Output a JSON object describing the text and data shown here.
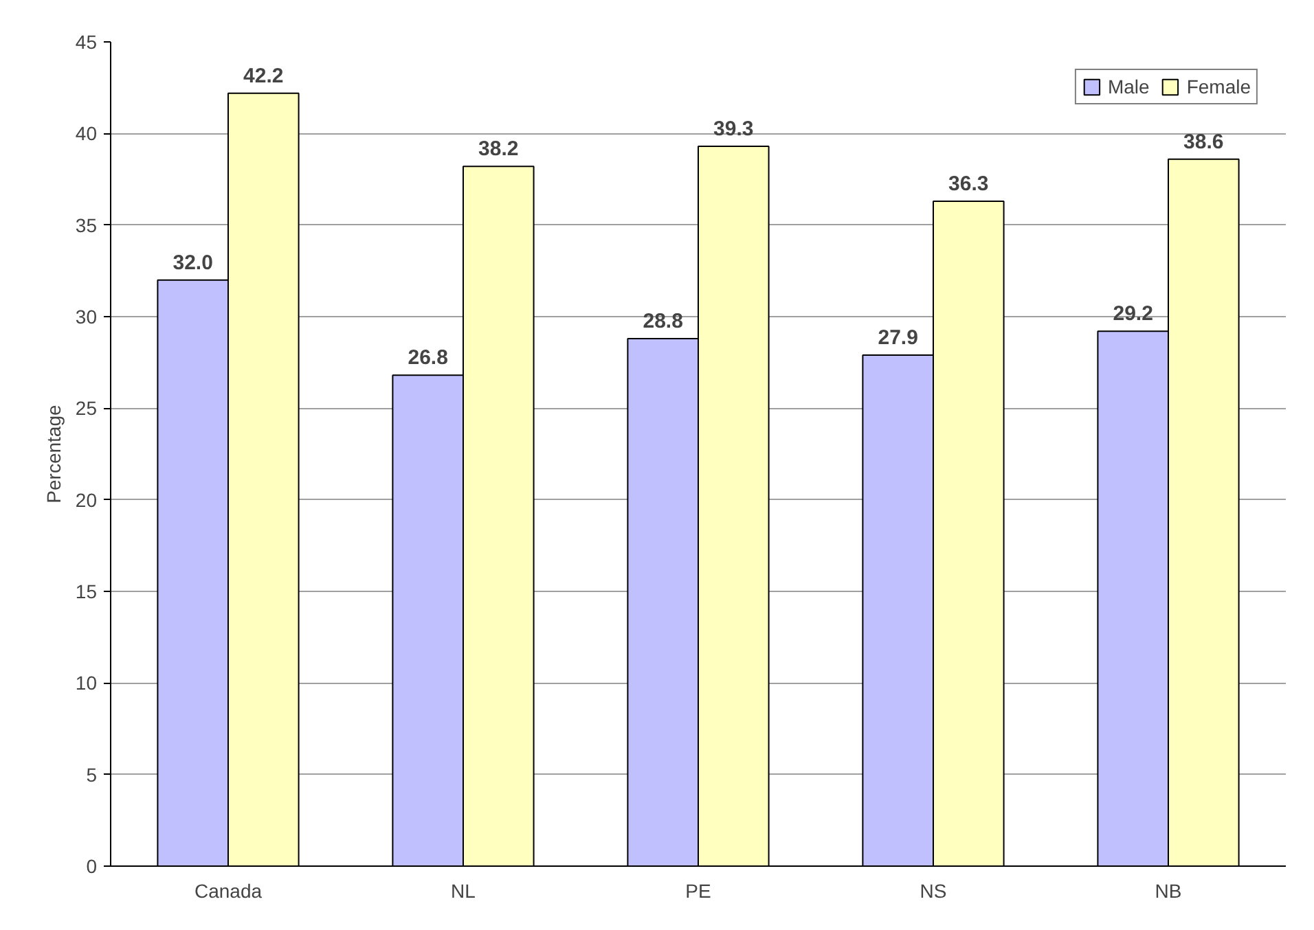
{
  "chart_data": {
    "type": "bar",
    "ylabel": "Percentage",
    "categories": [
      "Canada",
      "NL",
      "PE",
      "NS",
      "NB"
    ],
    "series": [
      {
        "name": "Male",
        "color": "#c0c0ff",
        "values": [
          32.0,
          26.8,
          28.8,
          27.9,
          29.2
        ],
        "value_labels": [
          "32.0",
          "26.8",
          "28.8",
          "27.9",
          "29.2"
        ]
      },
      {
        "name": "Female",
        "color": "#ffffc0",
        "values": [
          42.2,
          38.2,
          39.3,
          36.3,
          38.6
        ],
        "value_labels": [
          "42.2",
          "38.2",
          "39.3",
          "36.3",
          "38.6"
        ]
      }
    ],
    "ylim": [
      0,
      45
    ],
    "yticks": [
      0,
      5,
      10,
      15,
      20,
      25,
      30,
      35,
      40,
      45
    ],
    "grid": "y",
    "legend": "top right"
  }
}
